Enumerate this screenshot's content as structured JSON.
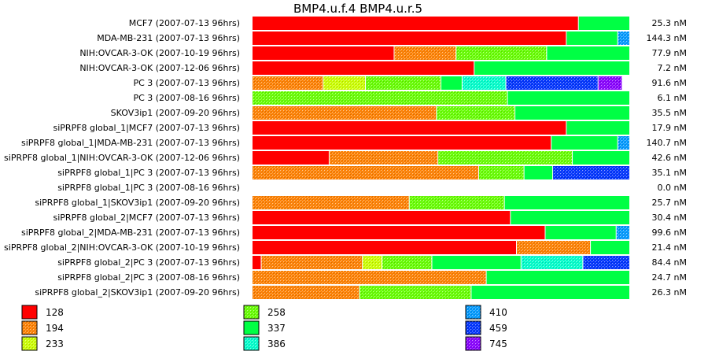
{
  "chart_data": {
    "type": "bar",
    "orientation": "horizontal",
    "stacked": true,
    "normalized": true,
    "title": "BMP4.u.f.4  BMP4.u.r.5",
    "unit": "nM",
    "categories": [
      "MCF7 (2007-07-13 96hrs)",
      "MDA-MB-231 (2007-07-13 96hrs)",
      "NIH:OVCAR-3-OK (2007-10-19 96hrs)",
      "NIH:OVCAR-3-OK (2007-12-06 96hrs)",
      "PC 3 (2007-07-13 96hrs)",
      "PC 3 (2007-08-16 96hrs)",
      "SKOV3ip1 (2007-09-20 96hrs)",
      "siPRPF8 global_1|MCF7 (2007-07-13 96hrs)",
      "siPRPF8 global_1|MDA-MB-231 (2007-07-13 96hrs)",
      "siPRPF8 global_1|NIH:OVCAR-3-OK (2007-12-06 96hrs)",
      "siPRPF8 global_1|PC 3 (2007-07-13 96hrs)",
      "siPRPF8 global_1|PC 3 (2007-08-16 96hrs)",
      "siPRPF8 global_1|SKOV3ip1 (2007-09-20 96hrs)",
      "siPRPF8 global_2|MCF7 (2007-07-13 96hrs)",
      "siPRPF8 global_2|MDA-MB-231 (2007-07-13 96hrs)",
      "siPRPF8 global_2|NIH:OVCAR-3-OK (2007-10-19 96hrs)",
      "siPRPF8 global_2|PC 3 (2007-07-13 96hrs)",
      "siPRPF8 global_2|PC 3 (2007-08-16 96hrs)",
      "siPRPF8 global_2|SKOV3ip1 (2007-09-20 96hrs)"
    ],
    "totals": [
      "25.3 nM",
      "144.3 nM",
      "77.9 nM",
      "7.2 nM",
      "91.6 nM",
      "6.1 nM",
      "35.5 nM",
      "17.9 nM",
      "140.7 nM",
      "42.6 nM",
      "35.1 nM",
      "0.0 nM",
      "25.7 nM",
      "30.4 nM",
      "99.6 nM",
      "21.4 nM",
      "84.4 nM",
      "24.7 nM",
      "26.3 nM"
    ],
    "segments": [
      [
        [
          "128",
          0.864
        ],
        [
          "337",
          0.136
        ]
      ],
      [
        [
          "128",
          0.832
        ],
        [
          "337",
          0.136
        ],
        [
          "410",
          0.032
        ]
      ],
      [
        [
          "128",
          0.376
        ],
        [
          "194",
          0.164
        ],
        [
          "258",
          0.24
        ],
        [
          "337",
          0.22
        ]
      ],
      [
        [
          "128",
          0.588
        ],
        [
          "337",
          0.412
        ]
      ],
      [
        [
          "194",
          0.188
        ],
        [
          "233",
          0.112
        ],
        [
          "258",
          0.2
        ],
        [
          "337",
          0.056
        ],
        [
          "386",
          0.116
        ],
        [
          "459",
          0.244
        ],
        [
          "745",
          0.064
        ]
      ],
      [
        [
          "258",
          0.676
        ],
        [
          "337",
          0.324
        ]
      ],
      [
        [
          "194",
          0.488
        ],
        [
          "258",
          0.208
        ],
        [
          "337",
          0.304
        ]
      ],
      [
        [
          "128",
          0.832
        ],
        [
          "337",
          0.168
        ]
      ],
      [
        [
          "128",
          0.792
        ],
        [
          "337",
          0.176
        ],
        [
          "410",
          0.032
        ]
      ],
      [
        [
          "128",
          0.204
        ],
        [
          "194",
          0.288
        ],
        [
          "258",
          0.356
        ],
        [
          "337",
          0.152
        ]
      ],
      [
        [
          "194",
          0.6
        ],
        [
          "258",
          0.12
        ],
        [
          "337",
          0.076
        ],
        [
          "459",
          0.204
        ]
      ],
      [],
      [
        [
          "194",
          0.416
        ],
        [
          "258",
          0.252
        ],
        [
          "337",
          0.332
        ]
      ],
      [
        [
          "128",
          0.684
        ],
        [
          "337",
          0.316
        ]
      ],
      [
        [
          "128",
          0.776
        ],
        [
          "337",
          0.188
        ],
        [
          "410",
          0.036
        ]
      ],
      [
        [
          "128",
          0.7
        ],
        [
          "194",
          0.196
        ],
        [
          "337",
          0.104
        ]
      ],
      [
        [
          "128",
          0.024
        ],
        [
          "194",
          0.268
        ],
        [
          "233",
          0.052
        ],
        [
          "258",
          0.132
        ],
        [
          "337",
          0.236
        ],
        [
          "386",
          0.164
        ],
        [
          "459",
          0.124
        ]
      ],
      [
        [
          "194",
          0.62
        ],
        [
          "337",
          0.38
        ]
      ],
      [
        [
          "194",
          0.284
        ],
        [
          "258",
          0.296
        ],
        [
          "337",
          0.42
        ]
      ]
    ],
    "legend": [
      {
        "label": "128",
        "color": "#ff0000",
        "pattern": false
      },
      {
        "label": "194",
        "color": "#ff8000",
        "pattern": true
      },
      {
        "label": "233",
        "color": "#ccff00",
        "pattern": true
      },
      {
        "label": "258",
        "color": "#66ff00",
        "pattern": true
      },
      {
        "label": "337",
        "color": "#00ff44",
        "pattern": false
      },
      {
        "label": "386",
        "color": "#00ffcc",
        "pattern": true
      },
      {
        "label": "410",
        "color": "#0099ff",
        "pattern": true
      },
      {
        "label": "459",
        "color": "#0033ff",
        "pattern": true
      },
      {
        "label": "745",
        "color": "#8800ff",
        "pattern": true
      }
    ],
    "legend_placement": "bottom"
  }
}
